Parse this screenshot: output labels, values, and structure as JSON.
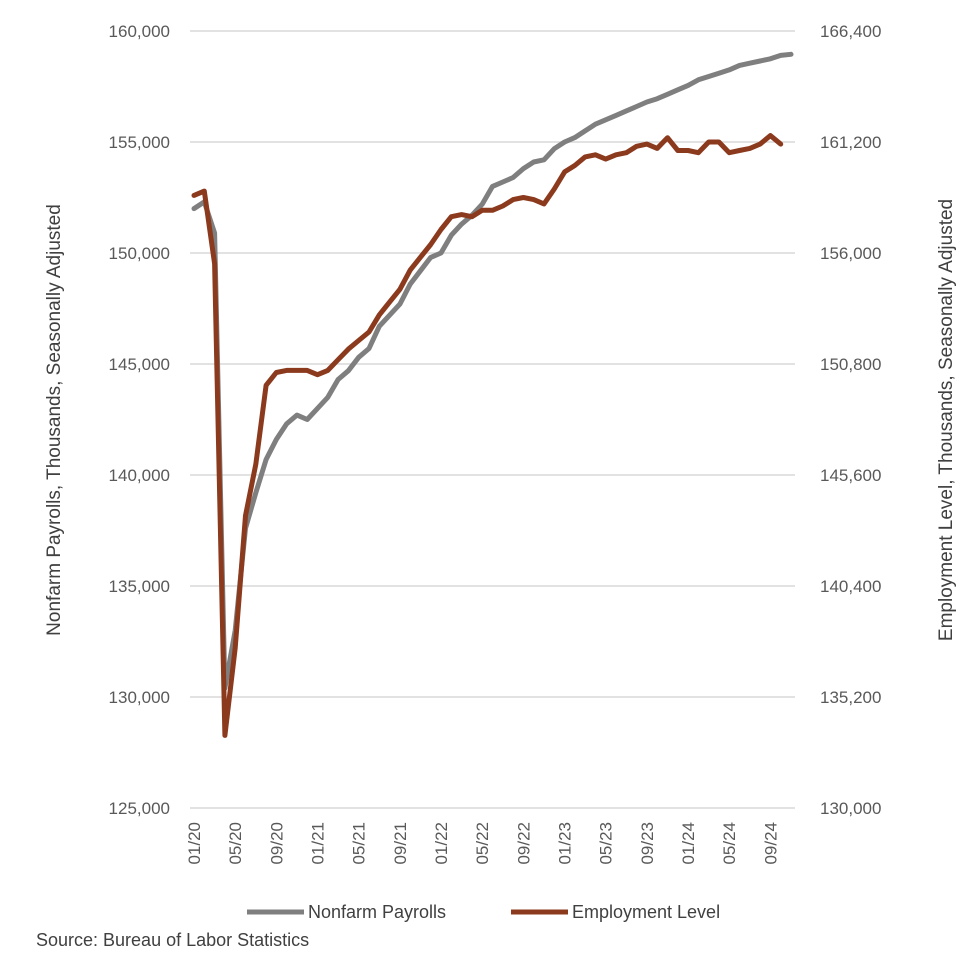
{
  "chart_data": {
    "type": "line",
    "title": "",
    "xlabel": "",
    "ylabel_left": "Nonfarm Payrolls, Thousands, Seasonally Adjusted",
    "ylabel_right": "Employment Level, Thousands, Seasonally Adjusted",
    "ylim_left": [
      125000,
      160000
    ],
    "ylim_right": [
      130000,
      166400
    ],
    "yticks_left": [
      "125,000",
      "130,000",
      "135,000",
      "140,000",
      "145,000",
      "150,000",
      "155,000",
      "160,000"
    ],
    "yticks_right": [
      "130,000",
      "135,200",
      "140,400",
      "145,600",
      "150,800",
      "156,000",
      "161,200",
      "166,400"
    ],
    "x_tick_labels": [
      "01/20",
      "05/20",
      "09/20",
      "01/21",
      "05/21",
      "09/21",
      "01/22",
      "05/22",
      "09/22",
      "01/23",
      "05/23",
      "09/23",
      "01/24",
      "05/24",
      "09/24"
    ],
    "legend_position": "bottom",
    "grid": "horizontal",
    "series": [
      {
        "name": "Nonfarm Payrolls",
        "axis": "left",
        "color": "#7f7f7f",
        "values": [
          152000,
          152300,
          150900,
          130400,
          133000,
          137600,
          139200,
          140700,
          141600,
          142300,
          142700,
          142500,
          143000,
          143500,
          144300,
          144700,
          145300,
          145700,
          146700,
          147200,
          147700,
          148600,
          149200,
          149800,
          150000,
          150800,
          151300,
          151700,
          152200,
          153000,
          153200,
          153400,
          153800,
          154100,
          154200,
          154700,
          155000,
          155200,
          155500,
          155800,
          156000,
          156200,
          156400,
          156600,
          156800,
          156950,
          157150,
          157350,
          157550,
          157800,
          157950,
          158100,
          158250,
          158450,
          158550,
          158650,
          158750,
          158900,
          158950
        ]
      },
      {
        "name": "Employment Level",
        "axis": "right",
        "color": "#8b3a1e",
        "values": [
          158700,
          158900,
          155500,
          133400,
          137500,
          143700,
          146100,
          149800,
          150400,
          150500,
          150500,
          150500,
          150300,
          150500,
          151000,
          151500,
          151900,
          152300,
          153100,
          153700,
          154300,
          155200,
          155800,
          156400,
          157100,
          157700,
          157800,
          157700,
          158000,
          158000,
          158200,
          158500,
          158600,
          158500,
          158300,
          159000,
          159800,
          160100,
          160500,
          160600,
          160400,
          160600,
          160700,
          161000,
          161100,
          160900,
          161400,
          160800,
          160800,
          160700,
          161200,
          161200,
          160700,
          160800,
          160900,
          161100,
          161500,
          161100
        ]
      }
    ]
  },
  "source": "Source: Bureau of Labor Statistics"
}
